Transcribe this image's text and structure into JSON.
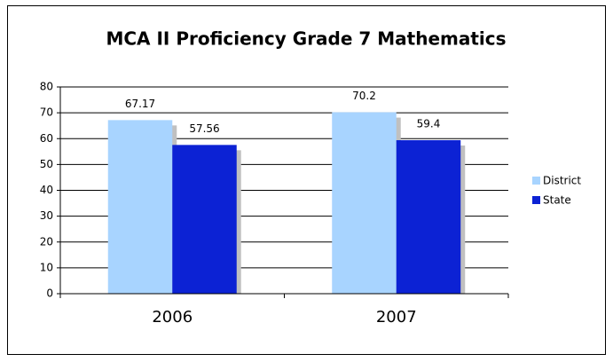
{
  "chart_data": {
    "type": "bar",
    "title": "MCA II Proficiency Grade 7 Mathematics",
    "categories": [
      "2006",
      "2007"
    ],
    "series": [
      {
        "name": "District",
        "color": "#a8d4ff",
        "values": [
          67.17,
          70.2
        ]
      },
      {
        "name": "State",
        "color": "#0c22d4",
        "values": [
          57.56,
          59.4
        ]
      }
    ],
    "ylim": [
      0,
      80
    ],
    "yticks": [
      0,
      10,
      20,
      30,
      40,
      50,
      60,
      70,
      80
    ],
    "grid": true,
    "legend": "right"
  }
}
